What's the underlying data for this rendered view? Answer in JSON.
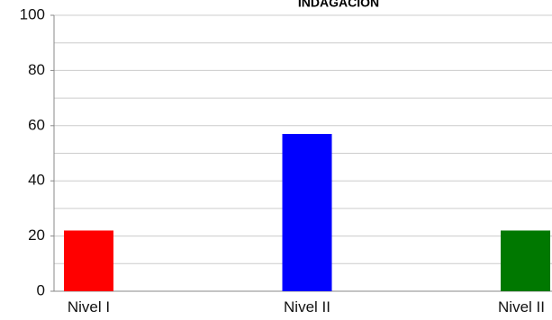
{
  "chart_data": {
    "type": "bar",
    "title": "INDAGACIÓN",
    "xlabel": "",
    "ylabel": "",
    "categories": [
      "Nivel I",
      "Nivel II",
      "Nivel II"
    ],
    "values": [
      22,
      57,
      22
    ],
    "colors": [
      "#ff0000",
      "#0000ff",
      "#007800"
    ],
    "ylim": [
      0,
      100
    ],
    "yticks": [
      0,
      20,
      40,
      60,
      80,
      100
    ],
    "grid": true,
    "legend": "none"
  }
}
